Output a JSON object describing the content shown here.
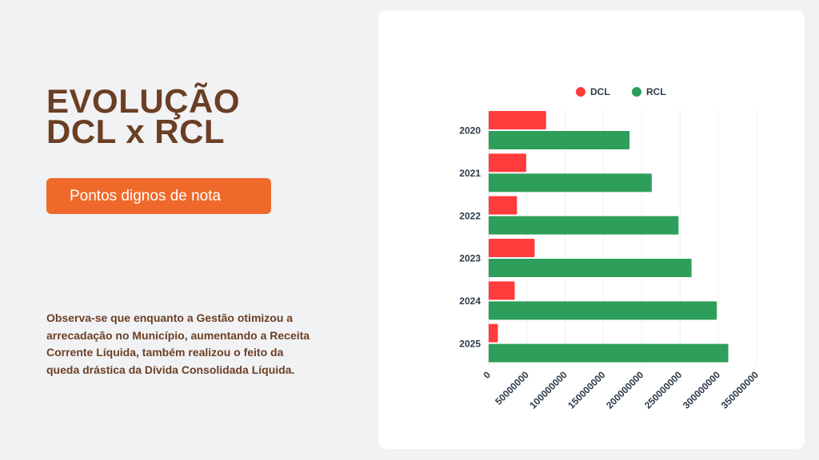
{
  "heading": {
    "line1": "EVOLUÇÃO",
    "line2": "DCL x RCL"
  },
  "notes_button": {
    "label": "Pontos dignos de nota"
  },
  "description": "Observa-se que enquanto a Gestão otimizou a arrecadação no Município, aumentando a Receita Corrente Líquida, também realizou o feito da queda drástica da Dívida Consolidada Líquida.",
  "colors": {
    "dcl": "#ff3b3b",
    "rcl": "#2e9e5b",
    "heading": "#6b3f24",
    "button": "#ef6a2a"
  },
  "chart_data": {
    "type": "bar",
    "orientation": "horizontal",
    "categories": [
      "2020",
      "2021",
      "2022",
      "2023",
      "2024",
      "2025"
    ],
    "series": [
      {
        "name": "DCL",
        "color": "#ff3b3b",
        "values": [
          75000000,
          49000000,
          37000000,
          60000000,
          34000000,
          12000000
        ]
      },
      {
        "name": "RCL",
        "color": "#2e9e5b",
        "values": [
          184000000,
          213000000,
          248000000,
          265000000,
          298000000,
          313000000
        ]
      }
    ],
    "xlim": [
      0,
      350000000
    ],
    "xticks": [
      "0",
      "50000000",
      "100000000",
      "150000000",
      "200000000",
      "250000000",
      "300000000",
      "350000000"
    ],
    "legend_position": "top-center",
    "grid": true
  }
}
